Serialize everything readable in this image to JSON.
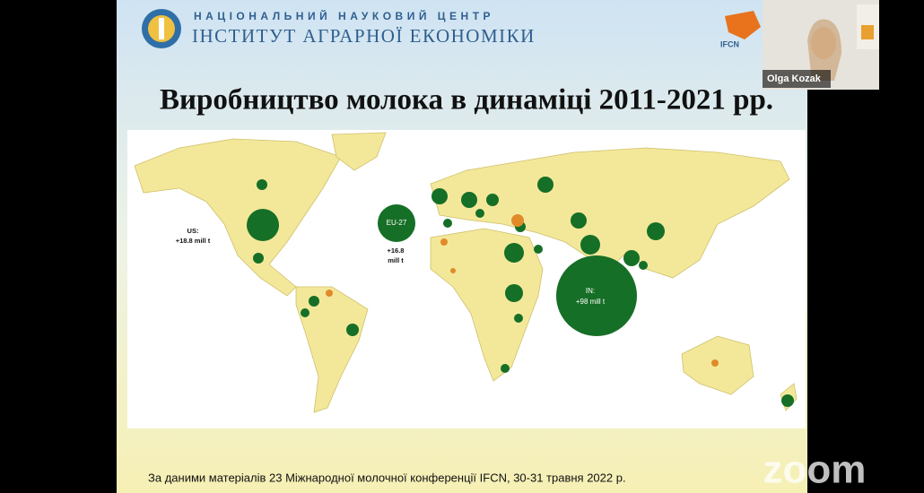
{
  "header": {
    "subtitle": "НАЦІОНАЛЬНИЙ НАУКОВИЙ ЦЕНТР",
    "title": "ІНСТИТУТ АГРАРНОЇ ЕКОНОМІКИ"
  },
  "slide": {
    "title": "Виробництво молока в динаміці 2011-2021 рр.",
    "map_labels": {
      "us": [
        "US:",
        "+18.8 mill t"
      ],
      "eu": [
        "EU-27",
        "+16.8",
        "mill t"
      ],
      "in": [
        "IN:",
        "+98 mill t"
      ]
    },
    "footer": "За даними матеріалів 23 Міжнародної молочної конференції IFCN, 30-31 травня 2022 р."
  },
  "ifcn_logo": "IFCN",
  "participant": {
    "name": "Olga Kozak"
  },
  "watermark": "zoom"
}
